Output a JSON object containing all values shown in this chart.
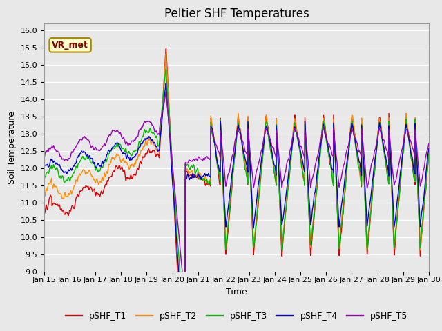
{
  "title": "Peltier SHF Temperatures",
  "ylabel": "Soil Temperature",
  "xlabel": "Time",
  "ylim": [
    9.0,
    16.2
  ],
  "yticks": [
    9.0,
    9.5,
    10.0,
    10.5,
    11.0,
    11.5,
    12.0,
    12.5,
    13.0,
    13.5,
    14.0,
    14.5,
    15.0,
    15.5,
    16.0
  ],
  "x_tick_labels": [
    "Jan 15",
    "Jan 16",
    "Jan 17",
    "Jan 18",
    "Jan 19",
    "Jan 20",
    "Jan 21",
    "Jan 22",
    "Jan 23",
    "Jan 24",
    "Jan 25",
    "Jan 26",
    "Jan 27",
    "Jan 28",
    "Jan 29",
    "Jan 30"
  ],
  "series_colors": [
    "#dd0000",
    "#ff8c00",
    "#00bb00",
    "#0000cc",
    "#9900bb"
  ],
  "series_labels": [
    "pSHF_T1",
    "pSHF_T2",
    "pSHF_T3",
    "pSHF_T4",
    "pSHF_T5"
  ],
  "annotation_text": "VR_met",
  "annotation_bbox_facecolor": "#ffffcc",
  "annotation_bbox_edgecolor": "#aa8800",
  "annotation_text_color": "#880000",
  "bg_color": "#e8e8e8",
  "grid_color": "#ffffff",
  "title_fontsize": 12,
  "ylabel_fontsize": 9,
  "xlabel_fontsize": 9,
  "tick_fontsize": 8,
  "legend_fontsize": 9,
  "line_width": 1.0,
  "n_points": 3600,
  "days": 15,
  "seed": 123
}
